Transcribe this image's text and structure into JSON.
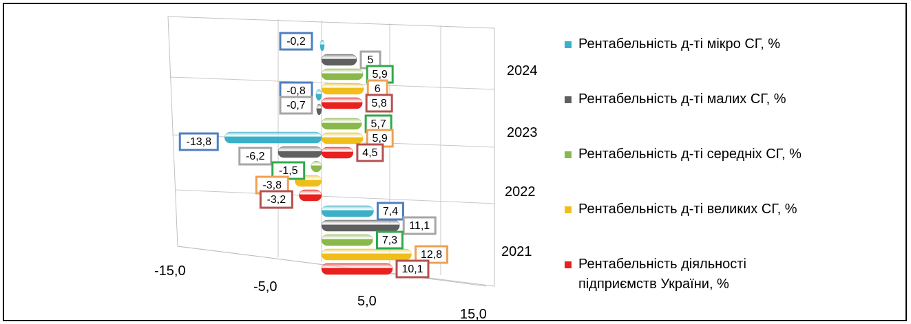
{
  "chart_data": {
    "type": "bar",
    "orientation": "horizontal",
    "style": "3d-cylinder",
    "categories": [
      "2021",
      "2022",
      "2023",
      "2024"
    ],
    "xlim": [
      -15.0,
      15.0
    ],
    "xticks": [
      "-15,0",
      "-5,0",
      "5,0",
      "15,0"
    ],
    "xtick_values": [
      -15,
      -5,
      5,
      15
    ],
    "grid": true,
    "legend_position": "right",
    "series": [
      {
        "name": "Рентабельність д-ті мікро СГ, %",
        "color": "#3bb0c9",
        "label_border": "#4f7fbf",
        "values": [
          7.4,
          -13.8,
          -0.8,
          -0.2
        ],
        "labels": [
          "7,4",
          "-13,8",
          "-0,8",
          "-0,2"
        ]
      },
      {
        "name": "Рентабельність д-ті малих СГ, %",
        "color": "#5f5f5f",
        "label_border": "#a6a6a6",
        "values": [
          11.1,
          -6.2,
          -0.7,
          5
        ],
        "labels": [
          "11,1",
          "-6,2",
          "-0,7",
          "5"
        ]
      },
      {
        "name": "Рентабельність д-ті середніх СГ, %",
        "color": "#8ab84a",
        "label_border": "#2eaa4a",
        "values": [
          7.3,
          -1.5,
          5.7,
          5.9
        ],
        "labels": [
          "7,3",
          "-1,5",
          "5,7",
          "5,9"
        ]
      },
      {
        "name": "Рентабельність д-ті великих СГ, %",
        "color": "#f0be1a",
        "label_border": "#f0a050",
        "values": [
          12.8,
          -3.8,
          5.9,
          6
        ],
        "labels": [
          "12,8",
          "-3,8",
          "5,9",
          "6"
        ]
      },
      {
        "name": "Рентабельність діяльності підприємств України, %",
        "color": "#e8201e",
        "label_border": "#b55050",
        "values": [
          10.1,
          -3.2,
          4.5,
          5.8
        ],
        "labels": [
          "10,1",
          "-3,2",
          "4,5",
          "5,8"
        ]
      }
    ]
  },
  "legend": {
    "items": [
      {
        "label": "Рентабельність д-ті мікро СГ, %",
        "color": "#3bb0c9"
      },
      {
        "label": "Рентабельність д-ті малих СГ, %",
        "color": "#5f5f5f"
      },
      {
        "label": "Рентабельність д-ті середніх СГ, %",
        "color": "#8ab84a"
      },
      {
        "label": "Рентабельність д-ті великих СГ, %",
        "color": "#f0be1a"
      },
      {
        "label": "Рентабельність діяльності підприємств України, %",
        "color": "#e8201e"
      }
    ]
  }
}
